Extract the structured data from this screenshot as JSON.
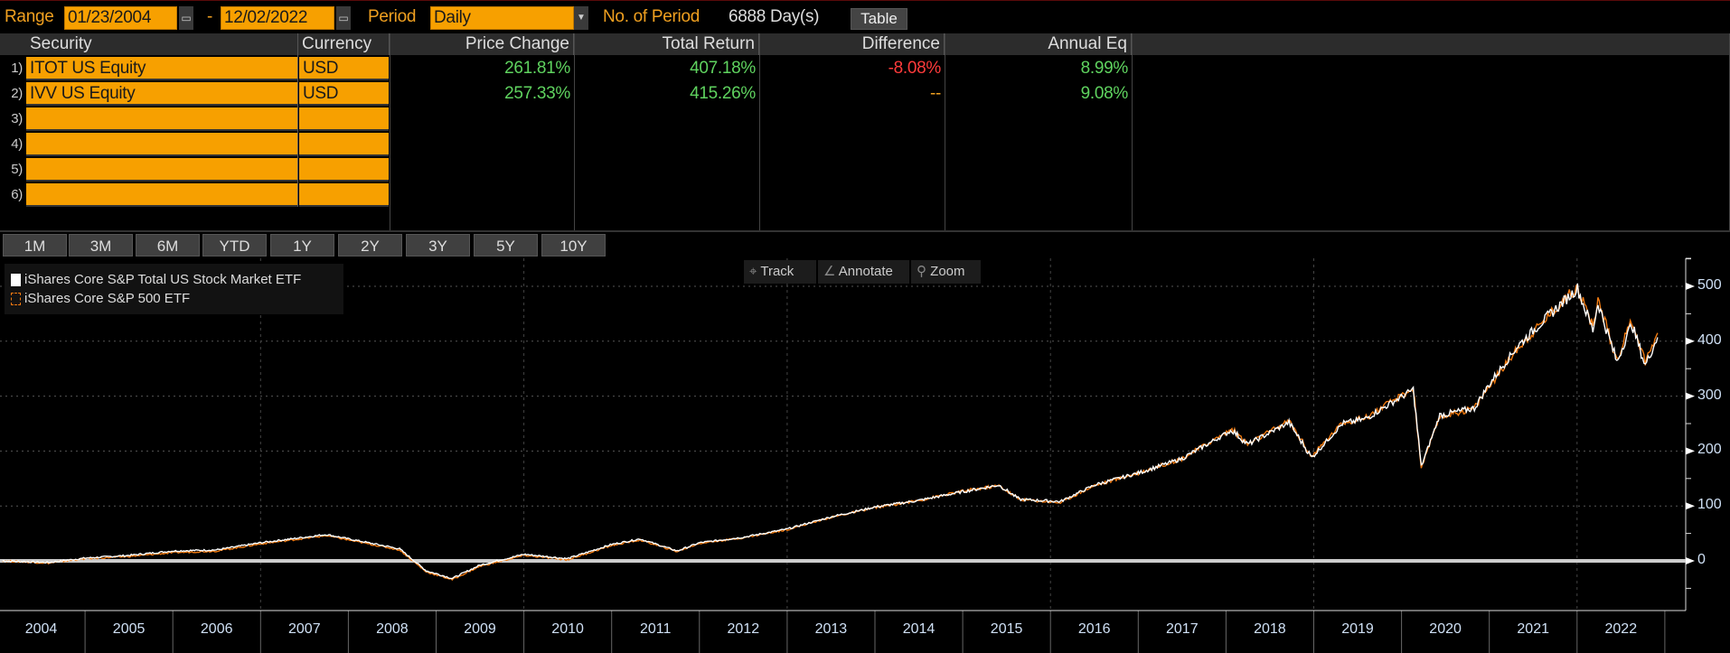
{
  "topbar": {
    "range_label": "Range",
    "start_date": "01/23/2004",
    "dash": "-",
    "end_date": "12/02/2022",
    "period_label": "Period",
    "period_value": "Daily",
    "num_period_label": "No. of Period",
    "num_period_value": "6888 Day(s)",
    "table_button": "Table"
  },
  "table": {
    "columns": [
      "Security",
      "Currency",
      "Price Change",
      "Total Return",
      "Difference",
      "Annual Eq"
    ],
    "rows": [
      {
        "num": "1)",
        "security": "ITOT US Equity",
        "currency": "USD",
        "price_change": "261.81%",
        "total_return": "407.18%",
        "difference": "-8.08%",
        "annual_eq": "8.99%"
      },
      {
        "num": "2)",
        "security": "IVV US Equity",
        "currency": "USD",
        "price_change": "257.33%",
        "total_return": "415.26%",
        "difference": "--",
        "annual_eq": "9.08%"
      },
      {
        "num": "3)",
        "security": "",
        "currency": ""
      },
      {
        "num": "4)",
        "security": "",
        "currency": ""
      },
      {
        "num": "5)",
        "security": "",
        "currency": ""
      },
      {
        "num": "6)",
        "security": "",
        "currency": ""
      }
    ]
  },
  "range_buttons": [
    "1M",
    "3M",
    "6M",
    "YTD",
    "1Y",
    "2Y",
    "3Y",
    "5Y",
    "10Y"
  ],
  "chart_tools": {
    "track": "Track",
    "annotate": "Annotate",
    "zoom": "Zoom"
  },
  "colors": {
    "accent": "#f7a000",
    "positive": "#5fd35f",
    "negative": "#ff3b3b",
    "series1": "#ffffff",
    "series2": "#f07a10"
  },
  "chart_data": {
    "type": "line",
    "x_tick_labels": [
      "2004",
      "2005",
      "2006",
      "2007",
      "2008",
      "2009",
      "2010",
      "2011",
      "2012",
      "2013",
      "2014",
      "2015",
      "2016",
      "2017",
      "2018",
      "2019",
      "2020",
      "2021",
      "2022"
    ],
    "y_ticks": [
      0,
      100,
      200,
      300,
      400,
      500
    ],
    "ylim": [
      -90,
      550
    ],
    "xlim": [
      "2004-01-01",
      "2022-12-31"
    ],
    "grid": true,
    "legend": "top-left",
    "series": [
      {
        "name": "iShares Core S&P Total US Stock Market ETF",
        "color": "#ffffff",
        "points": [
          [
            "2004-01-23",
            0
          ],
          [
            "2004-08-01",
            -3
          ],
          [
            "2005-01-01",
            5
          ],
          [
            "2005-07-01",
            10
          ],
          [
            "2006-01-01",
            18
          ],
          [
            "2006-07-01",
            20
          ],
          [
            "2007-01-01",
            33
          ],
          [
            "2007-10-01",
            48
          ],
          [
            "2008-03-01",
            35
          ],
          [
            "2008-08-01",
            22
          ],
          [
            "2008-11-20",
            -18
          ],
          [
            "2009-03-09",
            -32
          ],
          [
            "2009-07-01",
            -8
          ],
          [
            "2010-01-01",
            12
          ],
          [
            "2010-07-01",
            4
          ],
          [
            "2011-01-01",
            30
          ],
          [
            "2011-04-29",
            40
          ],
          [
            "2011-10-01",
            18
          ],
          [
            "2012-01-01",
            33
          ],
          [
            "2012-07-01",
            43
          ],
          [
            "2013-01-01",
            58
          ],
          [
            "2013-07-01",
            80
          ],
          [
            "2014-01-01",
            98
          ],
          [
            "2014-07-01",
            110
          ],
          [
            "2015-01-01",
            126
          ],
          [
            "2015-06-01",
            138
          ],
          [
            "2015-08-25",
            112
          ],
          [
            "2016-02-11",
            108
          ],
          [
            "2016-07-01",
            138
          ],
          [
            "2017-01-01",
            160
          ],
          [
            "2017-07-01",
            186
          ],
          [
            "2018-01-26",
            238
          ],
          [
            "2018-04-01",
            212
          ],
          [
            "2018-09-20",
            252
          ],
          [
            "2018-12-24",
            188
          ],
          [
            "2019-04-30",
            250
          ],
          [
            "2019-08-01",
            258
          ],
          [
            "2020-02-19",
            312
          ],
          [
            "2020-03-23",
            172
          ],
          [
            "2020-06-08",
            265
          ],
          [
            "2020-10-30",
            278
          ],
          [
            "2020-12-31",
            322
          ],
          [
            "2021-05-01",
            392
          ],
          [
            "2021-09-01",
            445
          ],
          [
            "2022-01-03",
            496
          ],
          [
            "2022-03-08",
            420
          ],
          [
            "2022-03-29",
            470
          ],
          [
            "2022-06-16",
            362
          ],
          [
            "2022-08-16",
            432
          ],
          [
            "2022-10-12",
            356
          ],
          [
            "2022-12-02",
            407
          ]
        ]
      },
      {
        "name": "iShares Core S&P 500 ETF",
        "color": "#f07a10",
        "points": [
          [
            "2004-01-23",
            0
          ],
          [
            "2004-08-01",
            -4
          ],
          [
            "2005-01-01",
            4
          ],
          [
            "2005-07-01",
            8
          ],
          [
            "2006-01-01",
            15
          ],
          [
            "2006-07-01",
            18
          ],
          [
            "2007-01-01",
            31
          ],
          [
            "2007-10-01",
            46
          ],
          [
            "2008-03-01",
            33
          ],
          [
            "2008-08-01",
            20
          ],
          [
            "2008-11-20",
            -20
          ],
          [
            "2009-03-09",
            -34
          ],
          [
            "2009-07-01",
            -10
          ],
          [
            "2010-01-01",
            10
          ],
          [
            "2010-07-01",
            2
          ],
          [
            "2011-01-01",
            28
          ],
          [
            "2011-04-29",
            38
          ],
          [
            "2011-10-01",
            17
          ],
          [
            "2012-01-01",
            32
          ],
          [
            "2012-07-01",
            42
          ],
          [
            "2013-01-01",
            57
          ],
          [
            "2013-07-01",
            79
          ],
          [
            "2014-01-01",
            97
          ],
          [
            "2014-07-01",
            110
          ],
          [
            "2015-01-01",
            127
          ],
          [
            "2015-06-01",
            137
          ],
          [
            "2015-08-25",
            112
          ],
          [
            "2016-02-11",
            106
          ],
          [
            "2016-07-01",
            137
          ],
          [
            "2017-01-01",
            160
          ],
          [
            "2017-07-01",
            186
          ],
          [
            "2018-01-26",
            240
          ],
          [
            "2018-04-01",
            212
          ],
          [
            "2018-09-20",
            255
          ],
          [
            "2018-12-24",
            190
          ],
          [
            "2019-04-30",
            252
          ],
          [
            "2019-08-01",
            260
          ],
          [
            "2020-02-19",
            314
          ],
          [
            "2020-03-23",
            170
          ],
          [
            "2020-06-08",
            262
          ],
          [
            "2020-10-30",
            278
          ],
          [
            "2020-12-31",
            318
          ],
          [
            "2021-05-01",
            388
          ],
          [
            "2021-09-01",
            445
          ],
          [
            "2022-01-03",
            500
          ],
          [
            "2022-03-08",
            424
          ],
          [
            "2022-03-29",
            476
          ],
          [
            "2022-06-16",
            366
          ],
          [
            "2022-08-16",
            440
          ],
          [
            "2022-10-12",
            362
          ],
          [
            "2022-12-02",
            415
          ]
        ]
      }
    ]
  }
}
